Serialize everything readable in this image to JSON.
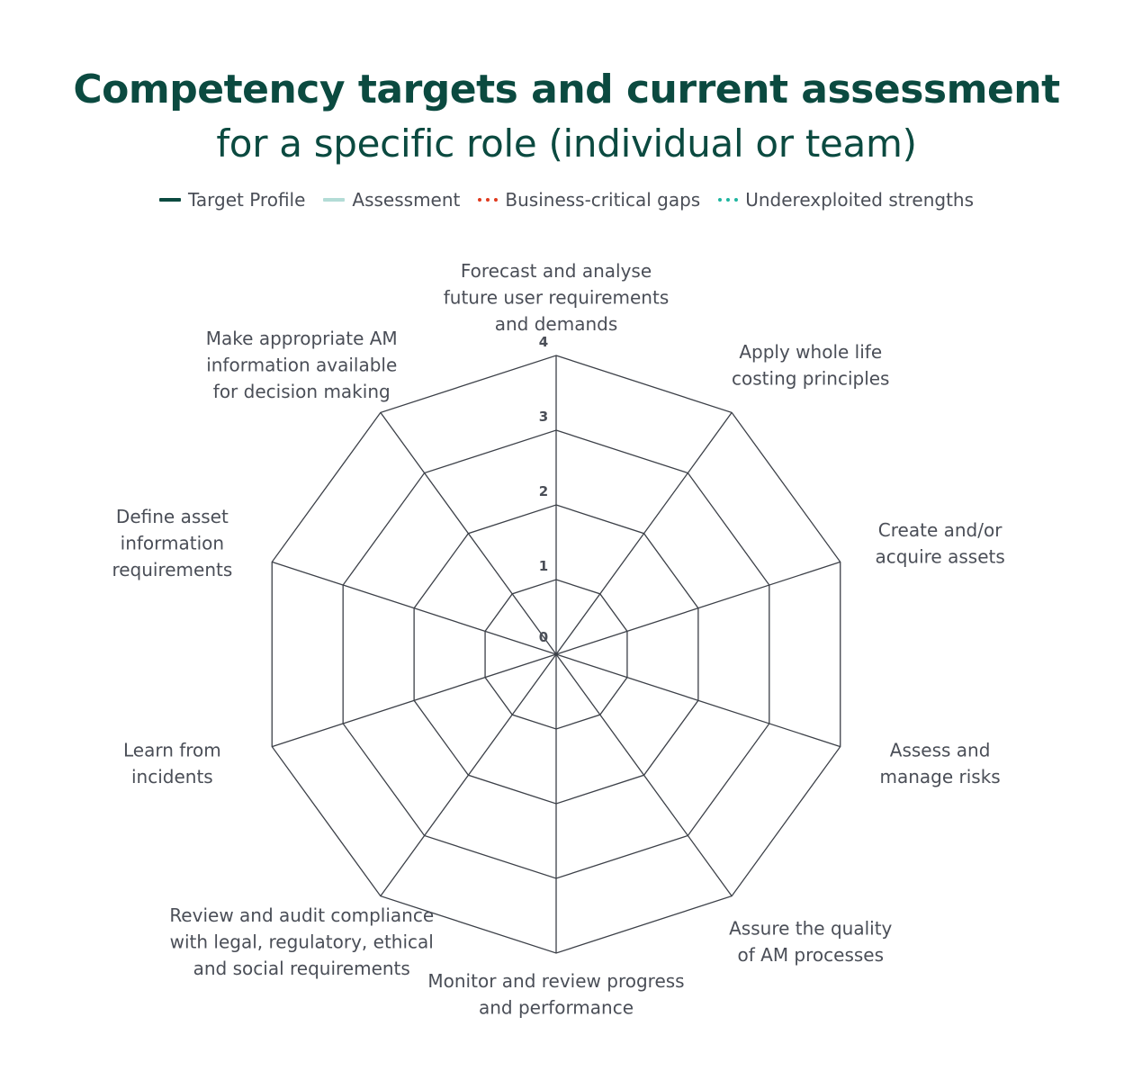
{
  "title": {
    "main": "Competency targets and current assessment",
    "sub": "for a specific role (individual or team)"
  },
  "legend": [
    {
      "label": "Target Profile",
      "color": "#0b4a40",
      "style": "solid"
    },
    {
      "label": "Assessment",
      "color": "#b3dcd6",
      "style": "solid"
    },
    {
      "label": "Business-critical gaps",
      "color": "#e03a1e",
      "style": "dotted"
    },
    {
      "label": "Underexploited strengths",
      "color": "#1fb5a0",
      "style": "dotted"
    }
  ],
  "chart_data": {
    "type": "radar",
    "title": "Competency targets and current assessment",
    "subtitle": "for a specific role (individual or team)",
    "rlim": [
      0,
      4
    ],
    "ticks": [
      "0",
      "1",
      "2",
      "3",
      "4"
    ],
    "grid": true,
    "legend_position": "top",
    "categories": [
      [
        "Forecast and analyse",
        "future user requirements",
        "and demands"
      ],
      [
        "Apply whole life",
        "costing principles"
      ],
      [
        "Create and/or",
        "acquire assets"
      ],
      [
        "Assess and",
        "manage risks"
      ],
      [
        "Assure the quality",
        "of AM processes"
      ],
      [
        "Monitor and review progress",
        "and performance"
      ],
      [
        "Review and audit compliance",
        "with legal, regulatory, ethical",
        "and social requirements"
      ],
      [
        "Learn from",
        "incidents"
      ],
      [
        "Define asset",
        "information",
        "requirements"
      ],
      [
        "Make appropriate AM",
        "information available",
        "for decision making"
      ]
    ],
    "series": []
  }
}
